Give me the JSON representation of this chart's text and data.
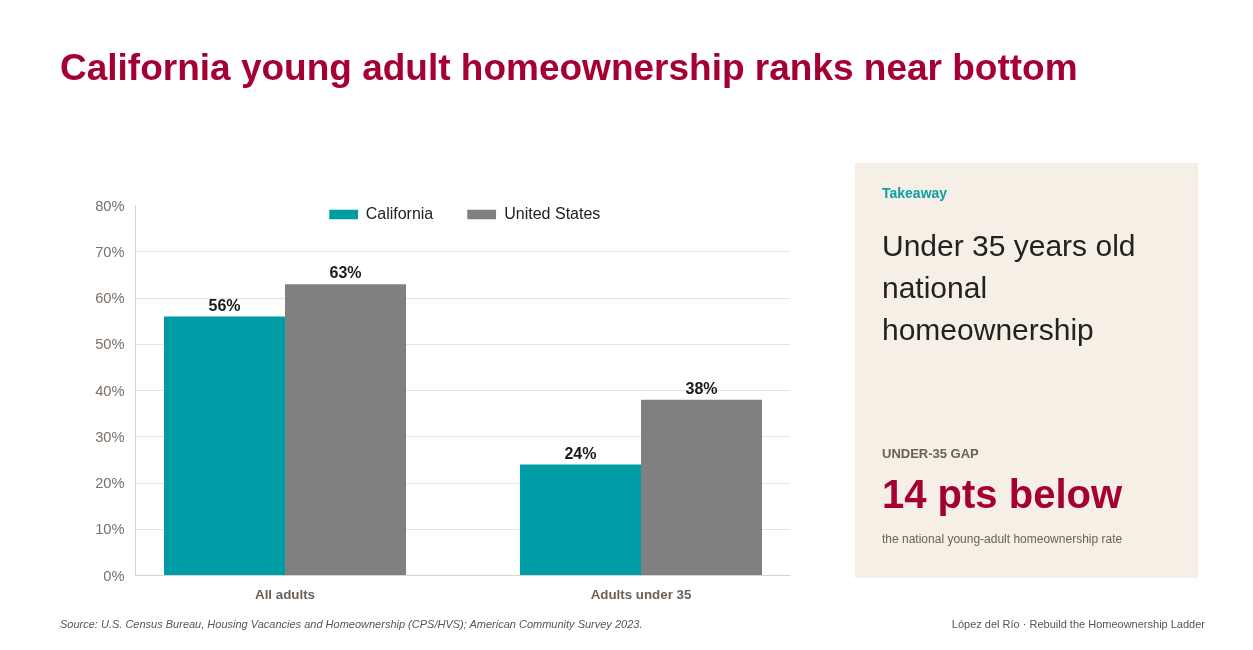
{
  "chart_data": [
    {
      "type": "bar",
      "title": "California young adult homeownership ranks near bottom",
      "categories": [
        "All adults",
        "Adults under 35"
      ],
      "series": [
        {
          "name": "California",
          "color": "#009ca6",
          "values": [
            56,
            24
          ],
          "value_labels": [
            "56%",
            "24%"
          ]
        },
        {
          "name": "United States",
          "color": "#808080",
          "values": [
            63,
            38
          ],
          "value_labels": [
            "63%",
            "38%"
          ]
        }
      ],
      "ylim": [
        0,
        80
      ],
      "yticks": [
        {
          "value": 0,
          "label": "0%"
        },
        {
          "value": 10,
          "label": "10%"
        },
        {
          "value": 20,
          "label": "20%"
        },
        {
          "value": 30,
          "label": "30%"
        },
        {
          "value": 40,
          "label": "40%"
        },
        {
          "value": 50,
          "label": "50%"
        },
        {
          "value": 60,
          "label": "60%"
        },
        {
          "value": 70,
          "label": "70%"
        },
        {
          "value": 80,
          "label": "80%"
        }
      ],
      "grid": "y",
      "legend": "top",
      "annotations": [
        "Source: U.S. Census Bureau, Housing Vacancies and Homeownership (CPS/HVS); American Community Survey 2023.",
        "López del Río · Rebuild the Homeownership Ladder"
      ]
    },
    {
      "type": "other",
      "title": "Takeaway",
      "subtitle": "Under 35 years old national homeownership",
      "annotations": [
        "UNDER-35 GAP",
        "14 pts below",
        "the national young-adult homeownership rate"
      ]
    }
  ]
}
